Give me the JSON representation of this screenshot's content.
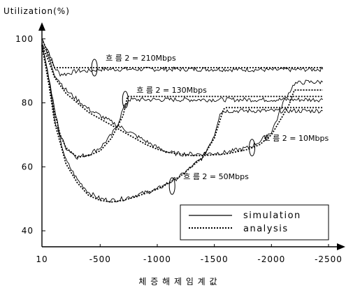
{
  "chart_data": {
    "type": "line",
    "ylabel": "Utilization(%)",
    "xlabel": "체 증 해 제 임 계 값",
    "xlim": [
      10,
      -2500
    ],
    "ylim": [
      35,
      103
    ],
    "x_ticks": [
      10,
      -500,
      -1000,
      -1500,
      -2000,
      -2500
    ],
    "x_tick_labels": [
      "10",
      "-500",
      "-1000",
      "-1500",
      "-2000",
      "-2500"
    ],
    "y_ticks": [
      40,
      60,
      80,
      100
    ],
    "y_tick_labels": [
      "40",
      "60",
      "80",
      "100"
    ],
    "grid": false,
    "legend_position": "bottom-right",
    "legend": [
      {
        "label": "simulation",
        "style": "solid"
      },
      {
        "label": "analysis",
        "style": "dotted"
      }
    ],
    "annotations": [
      {
        "text": "흐 름 2 = 210Mbps",
        "x": -450,
        "y": 91
      },
      {
        "text": "흐 름 2 = 130Mbps",
        "x": -720,
        "y": 81
      },
      {
        "text": "흐 름 2 = 10Mbps",
        "x": -1830,
        "y": 66
      },
      {
        "text": "흐 름 2 = 50Mbps",
        "x": -1130,
        "y": 54
      }
    ],
    "series": [
      {
        "label": "흐 름 2 = 210Mbps",
        "simulation": {
          "x": [
            10,
            -50,
            -100,
            -150,
            -200,
            -300,
            -400,
            -500,
            -700,
            -1000,
            -1500,
            -2000,
            -2450
          ],
          "y": [
            100,
            96,
            91,
            89,
            89,
            90,
            90,
            90.5,
            90.5,
            90.5,
            90.5,
            90.3,
            90.5
          ]
        },
        "analysis": {
          "x": [
            10,
            -50,
            -100,
            -150,
            -200,
            -2450
          ],
          "y": [
            100,
            95,
            91,
            91,
            91,
            91
          ]
        }
      },
      {
        "label": "흐 름 2 = 130Mbps",
        "simulation": {
          "x": [
            10,
            -50,
            -100,
            -150,
            -200,
            -300,
            -400,
            -500,
            -600,
            -650,
            -700,
            -750,
            -1000,
            -1500,
            -2000,
            -2450
          ],
          "y": [
            99,
            88,
            78,
            70,
            66,
            63,
            64,
            66,
            70,
            73,
            78,
            81,
            81,
            81,
            81,
            81
          ]
        },
        "analysis": {
          "x": [
            10,
            -50,
            -100,
            -150,
            -200,
            -300,
            -400,
            -500,
            -600,
            -700,
            -740,
            -2450
          ],
          "y": [
            98,
            86,
            77,
            70,
            66,
            63,
            63.5,
            65,
            69,
            76,
            82,
            82
          ]
        }
      },
      {
        "label": "흐 름 2 = 50Mbps",
        "simulation": {
          "x": [
            10,
            -50,
            -100,
            -200,
            -300,
            -400,
            -500,
            -600,
            -700,
            -800,
            -1000,
            -1200,
            -1400,
            -1500,
            -1550,
            -1600,
            -2000,
            -2450
          ],
          "y": [
            99,
            88,
            75,
            62,
            56,
            52,
            50,
            49.5,
            50,
            51,
            53,
            57,
            63,
            70,
            77,
            77.5,
            77.5,
            77.5
          ]
        },
        "analysis": {
          "x": [
            10,
            -50,
            -100,
            -200,
            -300,
            -400,
            -500,
            -600,
            -700,
            -800,
            -1000,
            -1200,
            -1400,
            -1500,
            -1580,
            -1600,
            -2450
          ],
          "y": [
            98,
            86,
            74,
            61,
            55,
            51,
            49.5,
            49,
            49.5,
            50.5,
            53,
            57,
            63,
            69,
            78,
            78.5,
            78.5
          ]
        }
      },
      {
        "label": "흐 름 2 = 10Mbps",
        "simulation": {
          "x": [
            10,
            -50,
            -100,
            -200,
            -300,
            -400,
            -500,
            -600,
            -700,
            -800,
            -900,
            -1000,
            -1100,
            -1200,
            -1300,
            -1400,
            -1600,
            -1800,
            -1900,
            -2000,
            -2050,
            -2100,
            -2200,
            -2300,
            -2450
          ],
          "y": [
            99,
            94,
            89,
            84,
            81,
            78,
            76,
            74,
            72,
            70,
            68,
            66,
            64.5,
            64,
            64,
            64,
            64.5,
            66,
            68,
            71,
            75,
            80,
            86,
            86.5,
            86.5
          ]
        },
        "analysis": {
          "x": [
            10,
            -50,
            -100,
            -200,
            -300,
            -400,
            -500,
            -600,
            -700,
            -800,
            -900,
            -1000,
            -1100,
            -1200,
            -1300,
            -1400,
            -1600,
            -1800,
            -1900,
            -2000,
            -2100,
            -2150,
            -2200,
            -2450
          ],
          "y": [
            98,
            93,
            88,
            83,
            80,
            77,
            75,
            73,
            71,
            69,
            67,
            65.5,
            64.5,
            64,
            63.5,
            63.5,
            64,
            65.5,
            67,
            70,
            76,
            79,
            84,
            84
          ]
        }
      }
    ]
  }
}
